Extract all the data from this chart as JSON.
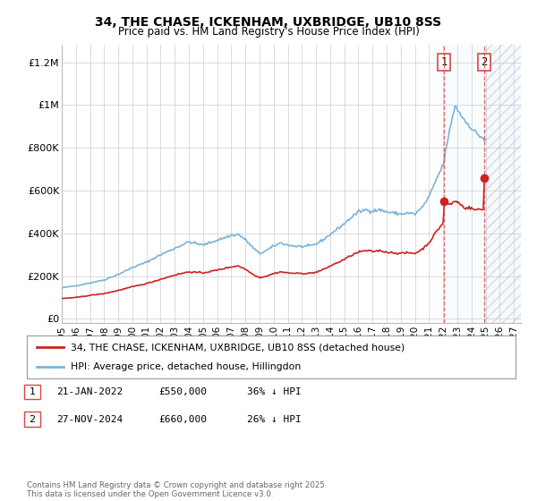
{
  "title_line1": "34, THE CHASE, ICKENHAM, UXBRIDGE, UB10 8SS",
  "title_line2": "Price paid vs. HM Land Registry's House Price Index (HPI)",
  "ylabel_ticks": [
    "£0",
    "£200K",
    "£400K",
    "£600K",
    "£800K",
    "£1M",
    "£1.2M"
  ],
  "ylabel_values": [
    0,
    200000,
    400000,
    600000,
    800000,
    1000000,
    1200000
  ],
  "ylim": [
    -20000,
    1280000
  ],
  "hpi_color": "#7ab4d8",
  "price_color": "#cc2222",
  "vline_color": "#dd4444",
  "marker1_date_x": 2022.05,
  "marker2_date_x": 2024.91,
  "marker1_price": 550000,
  "marker2_price": 660000,
  "legend_line1": "34, THE CHASE, ICKENHAM, UXBRIDGE, UB10 8SS (detached house)",
  "legend_line2": "HPI: Average price, detached house, Hillingdon",
  "annotation1_label": "1",
  "annotation2_label": "2",
  "table_row1": [
    "1",
    "21-JAN-2022",
    "£550,000",
    "36% ↓ HPI"
  ],
  "table_row2": [
    "2",
    "27-NOV-2024",
    "£660,000",
    "26% ↓ HPI"
  ],
  "footer": "Contains HM Land Registry data © Crown copyright and database right 2025.\nThis data is licensed under the Open Government Licence v3.0.",
  "background_color": "#ffffff",
  "grid_color": "#cccccc",
  "shade_color": "#ddeeff",
  "hatch_color": "#cccccc",
  "xlim": [
    1995.0,
    2027.5
  ],
  "xtick_years": [
    1995,
    1996,
    1997,
    1998,
    1999,
    2000,
    2001,
    2002,
    2003,
    2004,
    2005,
    2006,
    2007,
    2008,
    2009,
    2010,
    2011,
    2012,
    2013,
    2014,
    2015,
    2016,
    2017,
    2018,
    2019,
    2020,
    2021,
    2022,
    2023,
    2024,
    2025,
    2026,
    2027
  ]
}
